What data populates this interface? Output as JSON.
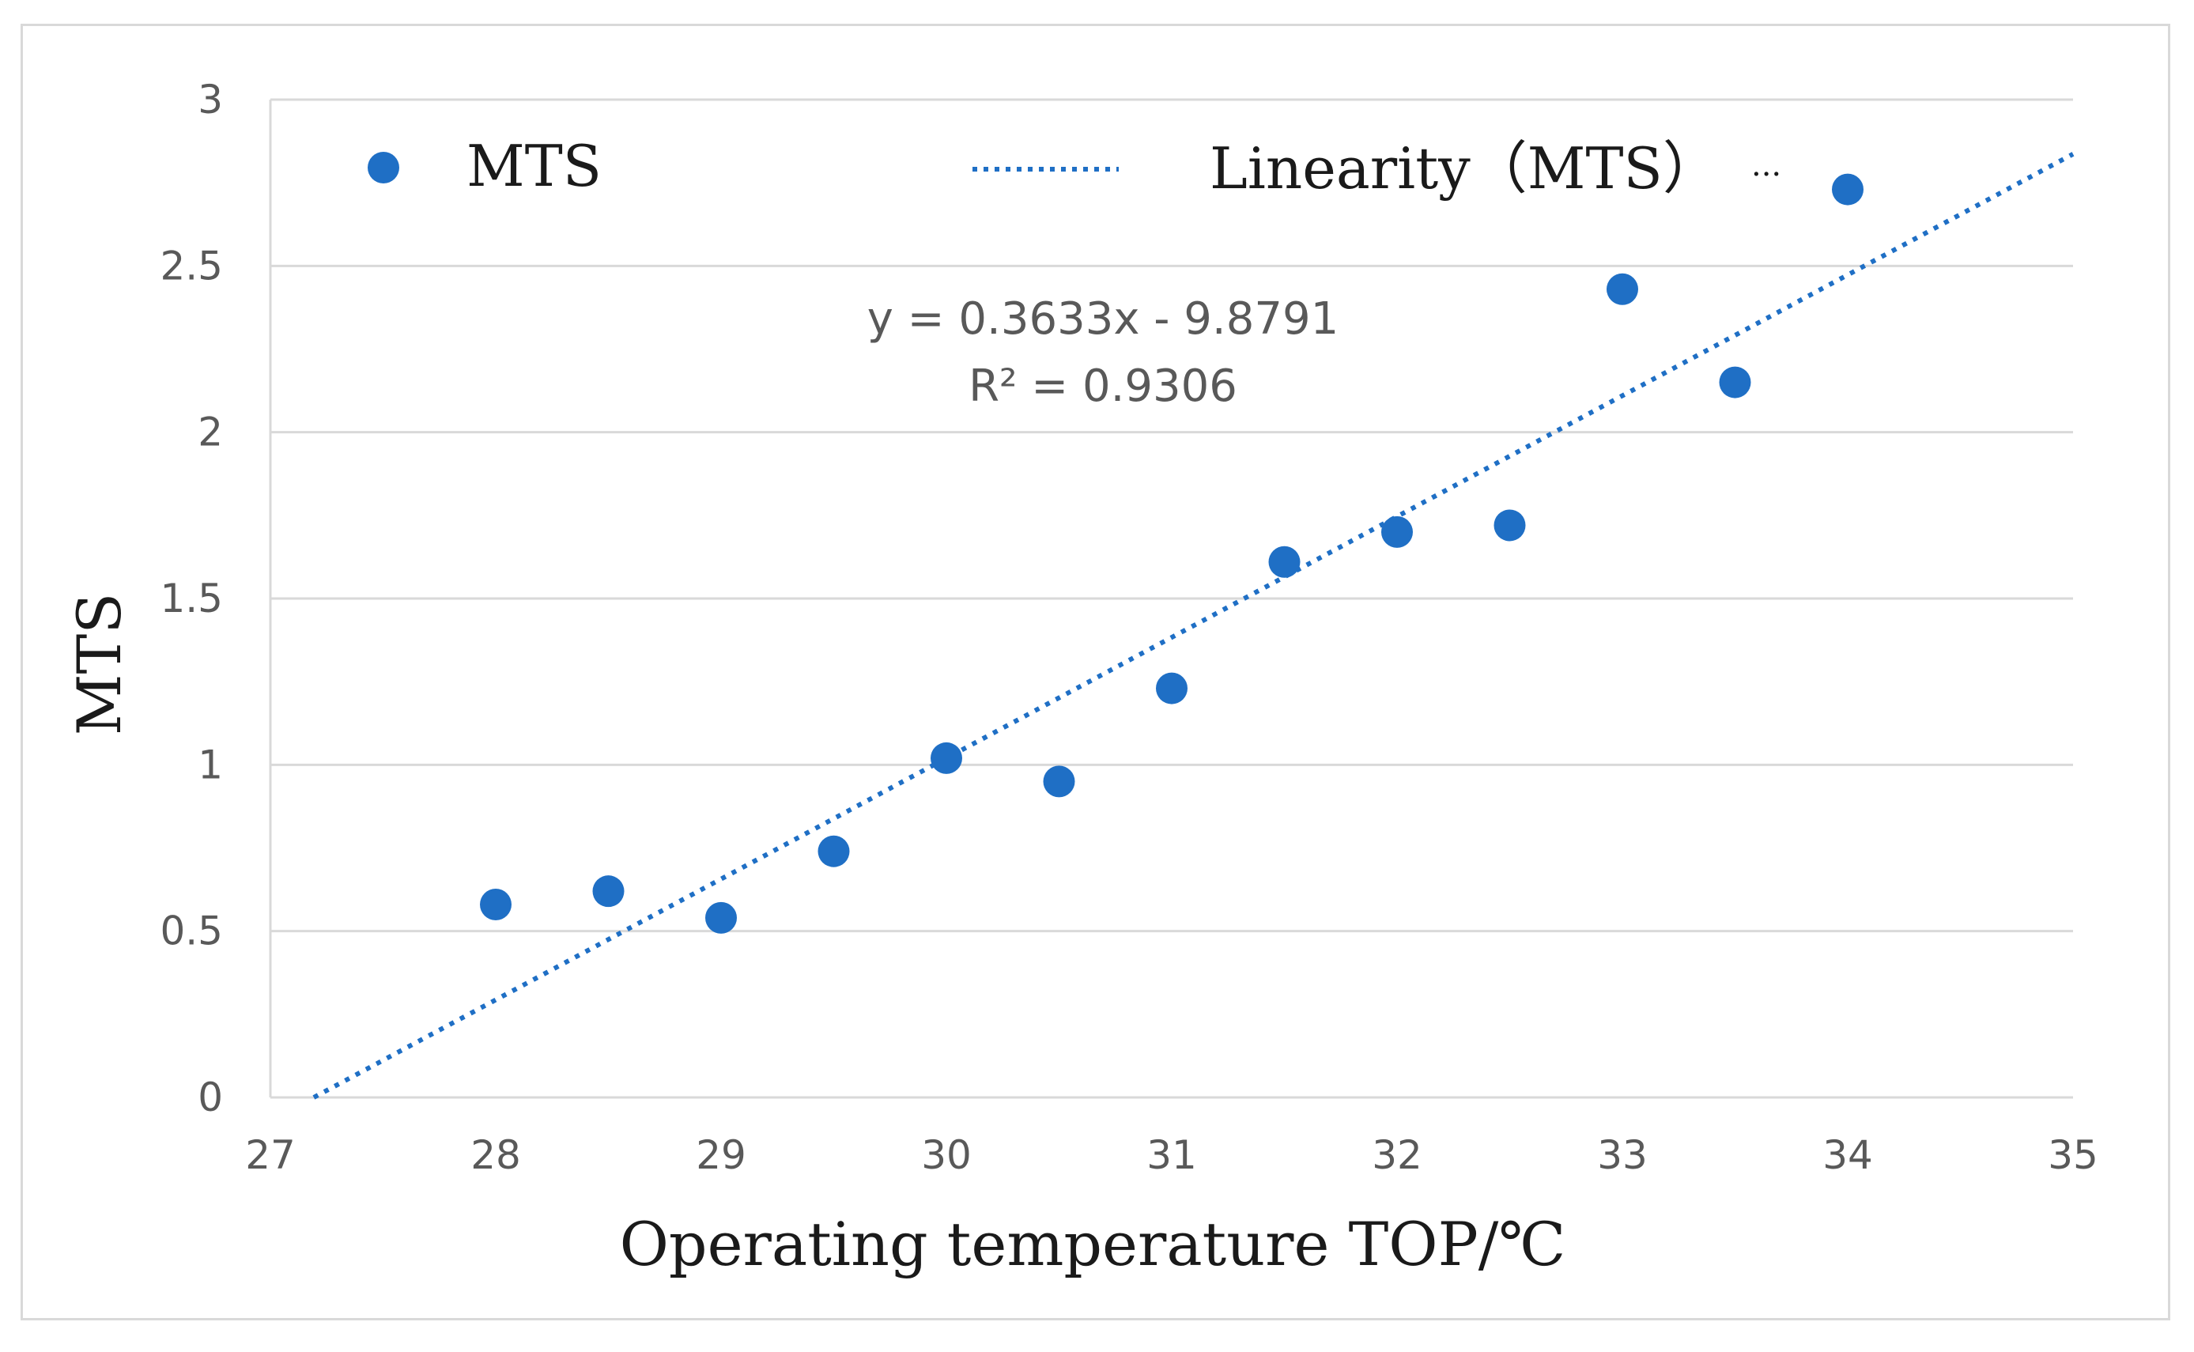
{
  "chart_data": {
    "type": "scatter",
    "title": "",
    "xlabel": "Operating temperature TOP/℃",
    "ylabel": "MTS",
    "xlim": [
      27,
      35
    ],
    "ylim": [
      0,
      3
    ],
    "x_ticks": [
      "27",
      "28",
      "29",
      "30",
      "31",
      "32",
      "33",
      "34",
      "35"
    ],
    "y_ticks": [
      "0",
      "0.5",
      "1",
      "1.5",
      "2",
      "2.5",
      "3"
    ],
    "grid": "horizontal",
    "legend_position": "top",
    "series": [
      {
        "name": "MTS",
        "kind": "scatter",
        "color": "#1f6fc5",
        "x": [
          28,
          28.5,
          29,
          29.5,
          30,
          30.5,
          31,
          31.5,
          32,
          32.5,
          33,
          33.5,
          34
        ],
        "y": [
          0.58,
          0.62,
          0.54,
          0.74,
          1.02,
          0.95,
          1.23,
          1.61,
          1.7,
          1.72,
          2.43,
          2.15,
          2.73
        ]
      },
      {
        "name": "Linearity（MTS）",
        "kind": "linear-trendline",
        "color": "#1f6fc5",
        "slope": 0.3633,
        "intercept": -9.8791
      }
    ],
    "legend": {
      "entries": [
        "MTS",
        "Linearity（MTS）"
      ],
      "overflow_marker": "..."
    },
    "annotations": {
      "equation": "y = 0.3633x - 9.8791",
      "r_squared": "R² = 0.9306"
    }
  }
}
